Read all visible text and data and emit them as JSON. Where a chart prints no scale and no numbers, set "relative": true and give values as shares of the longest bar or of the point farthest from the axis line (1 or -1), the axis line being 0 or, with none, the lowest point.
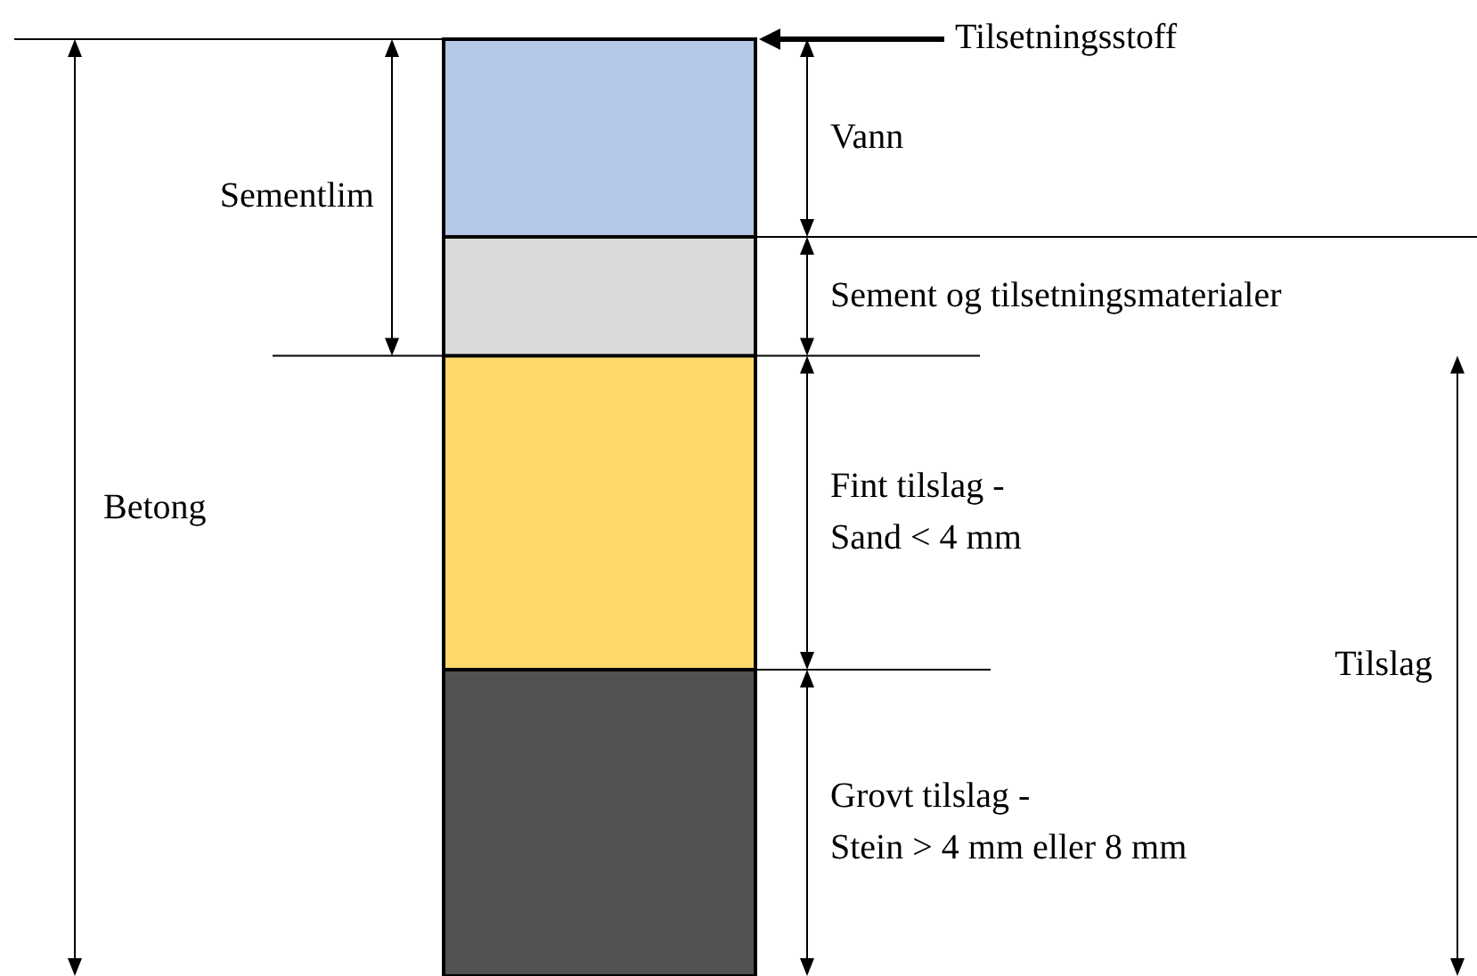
{
  "chart_data": {
    "type": "bar",
    "relative": true,
    "stacked": true,
    "categories": [
      null
    ],
    "series": [
      {
        "name": "Grovt tilslag - Stein > 4 mm eller 8 mm",
        "color": "#525252",
        "values": [
          0.327
        ]
      },
      {
        "name": "Fint tilslag - Sand < 4 mm",
        "color": "#fdd86a",
        "values": [
          0.335
        ]
      },
      {
        "name": "Sement og tilsetningsmaterialer",
        "color": "#d9d9d9",
        "values": [
          0.127
        ]
      },
      {
        "name": "Vann",
        "color": "#b4c7e7",
        "values": [
          0.211
        ]
      }
    ],
    "annotations": [
      "Tilsetningsstoff",
      "Sementlim",
      "Betong",
      "Tilslag"
    ]
  }
}
